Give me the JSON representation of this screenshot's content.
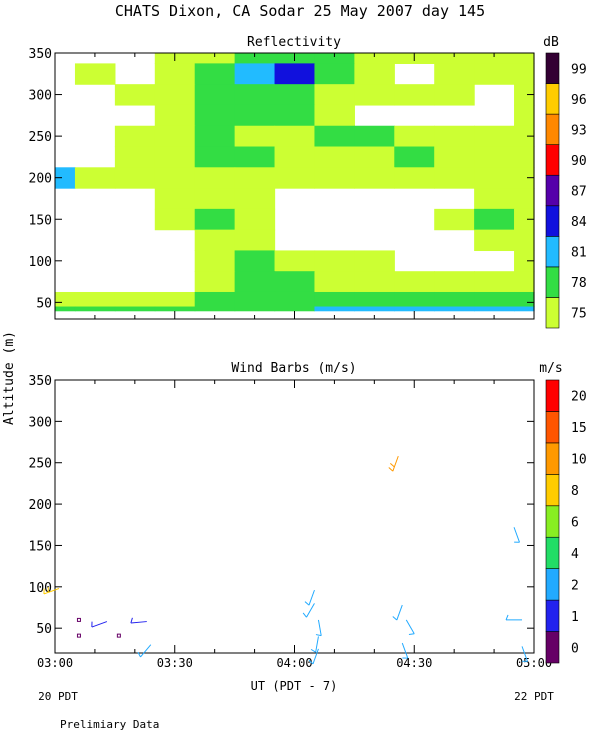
{
  "title": "CHATS Dixon, CA  Sodar  25 May 2007  day 145",
  "ylabel": "Altitude (m)",
  "xlabel": "UT  (PDT - 7)",
  "footnote": "Prelimiary Data",
  "x_start_note": "20 PDT",
  "x_end_note": "22 PDT",
  "chart_data": [
    {
      "type": "heatmap",
      "title": "Reflectivity",
      "colorbar_unit": "dB",
      "x_ticks": [
        "03:00",
        "03:30",
        "04:00",
        "04:30",
        "05:00"
      ],
      "xlim": [
        0,
        120
      ],
      "y_ticks": [
        50,
        100,
        150,
        200,
        250,
        300,
        350
      ],
      "ylim": [
        30,
        350
      ],
      "colorbar": {
        "levels": [
          75,
          78,
          81,
          84,
          87,
          90,
          93,
          96,
          99
        ],
        "colors": [
          "#ccff33",
          "#33dd44",
          "#22bbff",
          "#1111dd",
          "#5500aa",
          "#ff0000",
          "#ff8800",
          "#ffcc00",
          "#330033"
        ]
      },
      "x_grid": [
        0,
        10,
        20,
        30,
        40,
        50,
        60,
        70,
        80,
        90,
        100,
        110,
        120
      ],
      "y_grid": [
        350,
        325,
        300,
        275,
        250,
        225,
        200,
        175,
        150,
        125,
        100,
        75,
        50,
        40
      ],
      "grid": [
        [
          0,
          0,
          0,
          1,
          1,
          2,
          2,
          2,
          1,
          1,
          1,
          1,
          1
        ],
        [
          0,
          1,
          0,
          1,
          2,
          3,
          4,
          2,
          1,
          0,
          1,
          1,
          1
        ],
        [
          0,
          0,
          1,
          1,
          2,
          2,
          2,
          1,
          1,
          1,
          1,
          0,
          1
        ],
        [
          0,
          0,
          0,
          1,
          2,
          2,
          2,
          1,
          0,
          0,
          0,
          0,
          1
        ],
        [
          0,
          0,
          1,
          1,
          2,
          1,
          1,
          2,
          2,
          1,
          1,
          1,
          1
        ],
        [
          0,
          0,
          1,
          1,
          2,
          2,
          1,
          1,
          1,
          2,
          1,
          1,
          1
        ],
        [
          3,
          1,
          1,
          1,
          1,
          1,
          1,
          1,
          1,
          1,
          1,
          1,
          1
        ],
        [
          0,
          0,
          0,
          1,
          1,
          1,
          0,
          0,
          0,
          0,
          0,
          1,
          1
        ],
        [
          0,
          0,
          0,
          1,
          2,
          1,
          0,
          0,
          0,
          0,
          1,
          2,
          1
        ],
        [
          0,
          0,
          0,
          0,
          1,
          1,
          0,
          0,
          0,
          0,
          0,
          1,
          1
        ],
        [
          0,
          0,
          0,
          0,
          1,
          2,
          1,
          1,
          1,
          0,
          0,
          0,
          1
        ],
        [
          0,
          0,
          0,
          0,
          1,
          2,
          2,
          1,
          1,
          1,
          1,
          1,
          1
        ],
        [
          1,
          1,
          1,
          1,
          2,
          2,
          2,
          2,
          2,
          2,
          2,
          2,
          2
        ],
        [
          2,
          2,
          2,
          2,
          2,
          2,
          2,
          3,
          3,
          3,
          3,
          3,
          3
        ]
      ]
    },
    {
      "type": "scatter",
      "title": "Wind Barbs (m/s)",
      "colorbar_unit": "m/s",
      "x_ticks": [
        "03:00",
        "03:30",
        "04:00",
        "04:30",
        "05:00"
      ],
      "xlim": [
        0,
        120
      ],
      "y_ticks": [
        50,
        100,
        150,
        200,
        250,
        300,
        350
      ],
      "ylim": [
        20,
        350
      ],
      "colorbar": {
        "levels": [
          0,
          1,
          2,
          4,
          6,
          8,
          10,
          15,
          20
        ],
        "colors": [
          "#660066",
          "#2222ee",
          "#22aaff",
          "#22dd66",
          "#88ee22",
          "#ffcc00",
          "#ff9900",
          "#ff5500",
          "#ff0000"
        ]
      },
      "barbs": [
        {
          "x": 1,
          "y": 98,
          "speed": 9,
          "dir": 250
        },
        {
          "x": 6,
          "y": 60,
          "speed": 0,
          "dir": 0
        },
        {
          "x": 6,
          "y": 41,
          "speed": 0,
          "dir": 0
        },
        {
          "x": 13,
          "y": 58,
          "speed": 1.5,
          "dir": 250
        },
        {
          "x": 16,
          "y": 41,
          "speed": 0,
          "dir": 0
        },
        {
          "x": 23,
          "y": 58,
          "speed": 1.5,
          "dir": 265
        },
        {
          "x": 24,
          "y": 30,
          "speed": 3,
          "dir": 220
        },
        {
          "x": 65,
          "y": 96,
          "speed": 3,
          "dir": 200
        },
        {
          "x": 65,
          "y": 80,
          "speed": 3,
          "dir": 210
        },
        {
          "x": 66,
          "y": 60,
          "speed": 3,
          "dir": 170
        },
        {
          "x": 66,
          "y": 40,
          "speed": 3,
          "dir": 190
        },
        {
          "x": 66,
          "y": 25,
          "speed": 3,
          "dir": 200
        },
        {
          "x": 86,
          "y": 258,
          "speed": 12,
          "dir": 200
        },
        {
          "x": 87,
          "y": 78,
          "speed": 3,
          "dir": 200
        },
        {
          "x": 88,
          "y": 60,
          "speed": 3,
          "dir": 150
        },
        {
          "x": 87,
          "y": 32,
          "speed": 3,
          "dir": 160
        },
        {
          "x": 115,
          "y": 172,
          "speed": 3,
          "dir": 160
        },
        {
          "x": 117,
          "y": 60,
          "speed": 3,
          "dir": 270
        },
        {
          "x": 117,
          "y": 28,
          "speed": 3,
          "dir": 160
        }
      ]
    }
  ]
}
